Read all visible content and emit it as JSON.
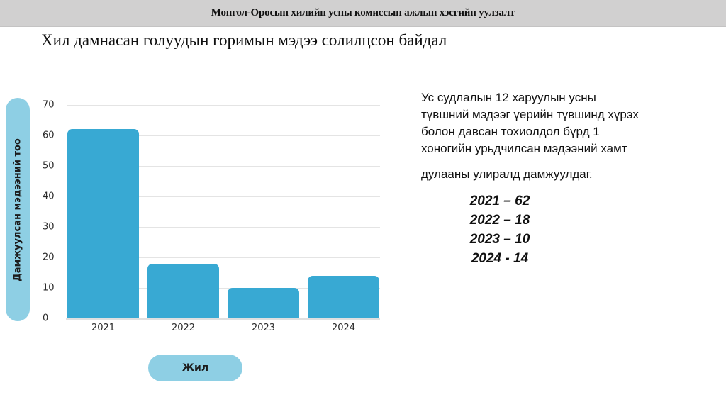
{
  "header": {
    "title": "Монгол-Оросын хилийн усны комиссын ажлын хэсгийн уулзалт"
  },
  "slide": {
    "title": "Хил дамнасан голуудын горимын мэдээ солилцсон байдал"
  },
  "description": {
    "lines": [
      "Ус судлалын 12 харуулын усны",
      "түвшний мэдээг үерийн түвшинд хүрэх",
      "болон давсан тохиолдол бүрд 1",
      "хоногийн урьдчилсан мэдээний хамт"
    ],
    "last_line": "дулааны улиралд дамжуулдаг."
  },
  "values_list": [
    "2021 – 62",
    "2022 – 18",
    "2023 – 10",
    "2024 - 14"
  ],
  "colors": {
    "bar": "#38a9d3",
    "pill": "#8ecfe4",
    "header_bg": "#d1d0d0"
  },
  "chart_data": {
    "type": "bar",
    "title": "",
    "xlabel": "Жил",
    "ylabel": "Дамжуулсан мэдээний тоо",
    "categories": [
      "2021",
      "2022",
      "2023",
      "2024"
    ],
    "values": [
      62,
      18,
      10,
      14
    ],
    "ylim": [
      0,
      70
    ],
    "yticks": [
      "0",
      "10",
      "20",
      "30",
      "40",
      "50",
      "60",
      "70"
    ],
    "grid": true,
    "legend": "none"
  }
}
